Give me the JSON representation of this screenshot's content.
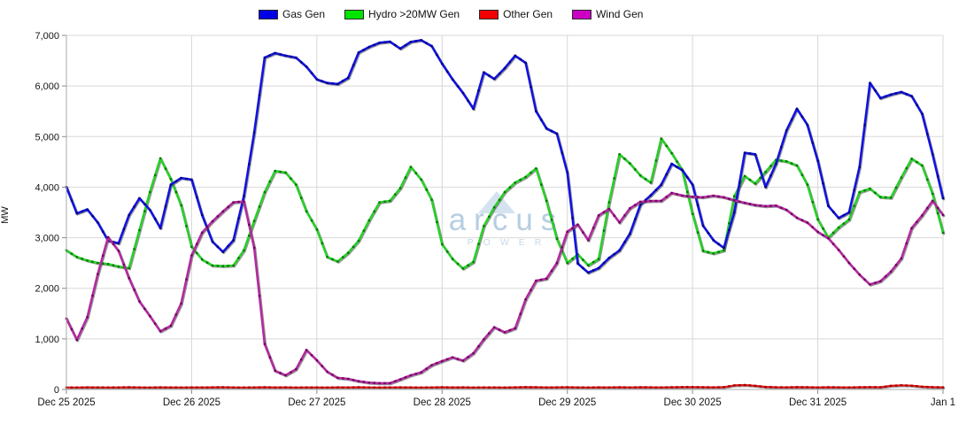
{
  "watermark": {
    "brand": "arcus",
    "subtitle": "POWER"
  },
  "chart_data": {
    "type": "line",
    "title": "",
    "ylabel": "MW",
    "ylim": [
      0,
      7000
    ],
    "grid": true,
    "legend_position": "top-center",
    "x_range_hours": 168,
    "sample_step_hours": 2,
    "x_start": "Dec 25 2025 00:00",
    "y_ticks": [
      "7,000",
      "6,000",
      "5,000",
      "4,000",
      "3,000",
      "2,000",
      "1,000",
      "0"
    ],
    "x_ticks": [
      {
        "label": "Dec 25 2025",
        "hour": 0
      },
      {
        "label": "Dec 26 2025",
        "hour": 24
      },
      {
        "label": "Dec 27 2025",
        "hour": 48
      },
      {
        "label": "Dec 28 2025",
        "hour": 72
      },
      {
        "label": "Dec 29 2025",
        "hour": 96
      },
      {
        "label": "Dec 30 2025",
        "hour": 120
      },
      {
        "label": "Dec 31 2025",
        "hour": 144
      },
      {
        "label": "Jan 1",
        "hour": 168
      }
    ],
    "series": [
      {
        "name": "Gas Gen",
        "color": "#1212e0",
        "marker_color": "#000088",
        "swatch": "#0000e8",
        "values": [
          4000,
          3480,
          3560,
          3300,
          2940,
          2890,
          3450,
          3780,
          3550,
          3190,
          4050,
          4180,
          4150,
          3450,
          2920,
          2720,
          2950,
          3820,
          5080,
          6560,
          6650,
          6600,
          6560,
          6380,
          6130,
          6060,
          6040,
          6160,
          6660,
          6770,
          6855,
          6875,
          6740,
          6870,
          6905,
          6790,
          6440,
          6130,
          5860,
          5550,
          6270,
          6140,
          6350,
          6600,
          6460,
          5500,
          5160,
          5060,
          4290,
          2490,
          2310,
          2400,
          2600,
          2750,
          3080,
          3650,
          3840,
          4050,
          4460,
          4340,
          4050,
          3240,
          2950,
          2800,
          3500,
          4680,
          4650,
          4000,
          4460,
          5120,
          5550,
          5230,
          4520,
          3630,
          3390,
          3500,
          4400,
          6060,
          5760,
          5830,
          5880,
          5800,
          5450,
          4650,
          3780
        ]
      },
      {
        "name": "Hydro >20MW Gen",
        "color": "#28d028",
        "marker_color": "#007700",
        "swatch": "#00e400",
        "values": [
          2750,
          2620,
          2550,
          2500,
          2480,
          2430,
          2400,
          3150,
          3900,
          4570,
          4160,
          3640,
          2820,
          2570,
          2450,
          2440,
          2450,
          2750,
          3330,
          3900,
          4320,
          4290,
          4050,
          3520,
          3160,
          2620,
          2530,
          2700,
          2940,
          3340,
          3700,
          3730,
          3980,
          4400,
          4150,
          3750,
          2870,
          2580,
          2390,
          2520,
          3230,
          3600,
          3900,
          4090,
          4200,
          4370,
          3730,
          2980,
          2500,
          2670,
          2455,
          2580,
          3700,
          4650,
          4470,
          4230,
          4090,
          4960,
          4670,
          4340,
          3470,
          2740,
          2690,
          2750,
          3820,
          4220,
          4070,
          4300,
          4540,
          4510,
          4430,
          4050,
          3360,
          3000,
          3200,
          3360,
          3900,
          3970,
          3805,
          3790,
          4190,
          4560,
          4430,
          3870,
          3100
        ]
      },
      {
        "name": "Other Gen",
        "color": "#e81212",
        "marker_color": "#990000",
        "swatch": "#f00000",
        "values": [
          40,
          38,
          42,
          40,
          39,
          41,
          43,
          40,
          38,
          42,
          40,
          39,
          41,
          40,
          42,
          44,
          40,
          38,
          41,
          43,
          40,
          42,
          39,
          41,
          40,
          38,
          42,
          40,
          43,
          41,
          39,
          40,
          42,
          40,
          38,
          41,
          43,
          40,
          42,
          39,
          41,
          40,
          38,
          42,
          45,
          43,
          40,
          42,
          44,
          41,
          39,
          42,
          40,
          43,
          41,
          44,
          42,
          40,
          43,
          45,
          48,
          44,
          42,
          46,
          80,
          88,
          72,
          50,
          44,
          42,
          45,
          43,
          41,
          44,
          42,
          40,
          43,
          46,
          44,
          72,
          82,
          76,
          55,
          46,
          42
        ]
      },
      {
        "name": "Wind Gen",
        "color": "#b32a9e",
        "marker_color": "#6d0560",
        "swatch": "#cc00c4",
        "values": [
          1400,
          980,
          1430,
          2280,
          3010,
          2740,
          2200,
          1740,
          1450,
          1150,
          1260,
          1700,
          2650,
          3100,
          3325,
          3520,
          3700,
          3715,
          2800,
          900,
          370,
          280,
          400,
          780,
          575,
          350,
          230,
          210,
          165,
          135,
          125,
          125,
          200,
          280,
          340,
          480,
          560,
          635,
          570,
          715,
          990,
          1230,
          1130,
          1210,
          1780,
          2150,
          2190,
          2500,
          3120,
          3260,
          2950,
          3440,
          3570,
          3300,
          3580,
          3710,
          3725,
          3730,
          3885,
          3835,
          3810,
          3800,
          3830,
          3800,
          3740,
          3690,
          3645,
          3625,
          3635,
          3550,
          3395,
          3300,
          3115,
          2990,
          2760,
          2500,
          2270,
          2075,
          2140,
          2330,
          2590,
          3190,
          3440,
          3730,
          3450
        ]
      }
    ]
  }
}
